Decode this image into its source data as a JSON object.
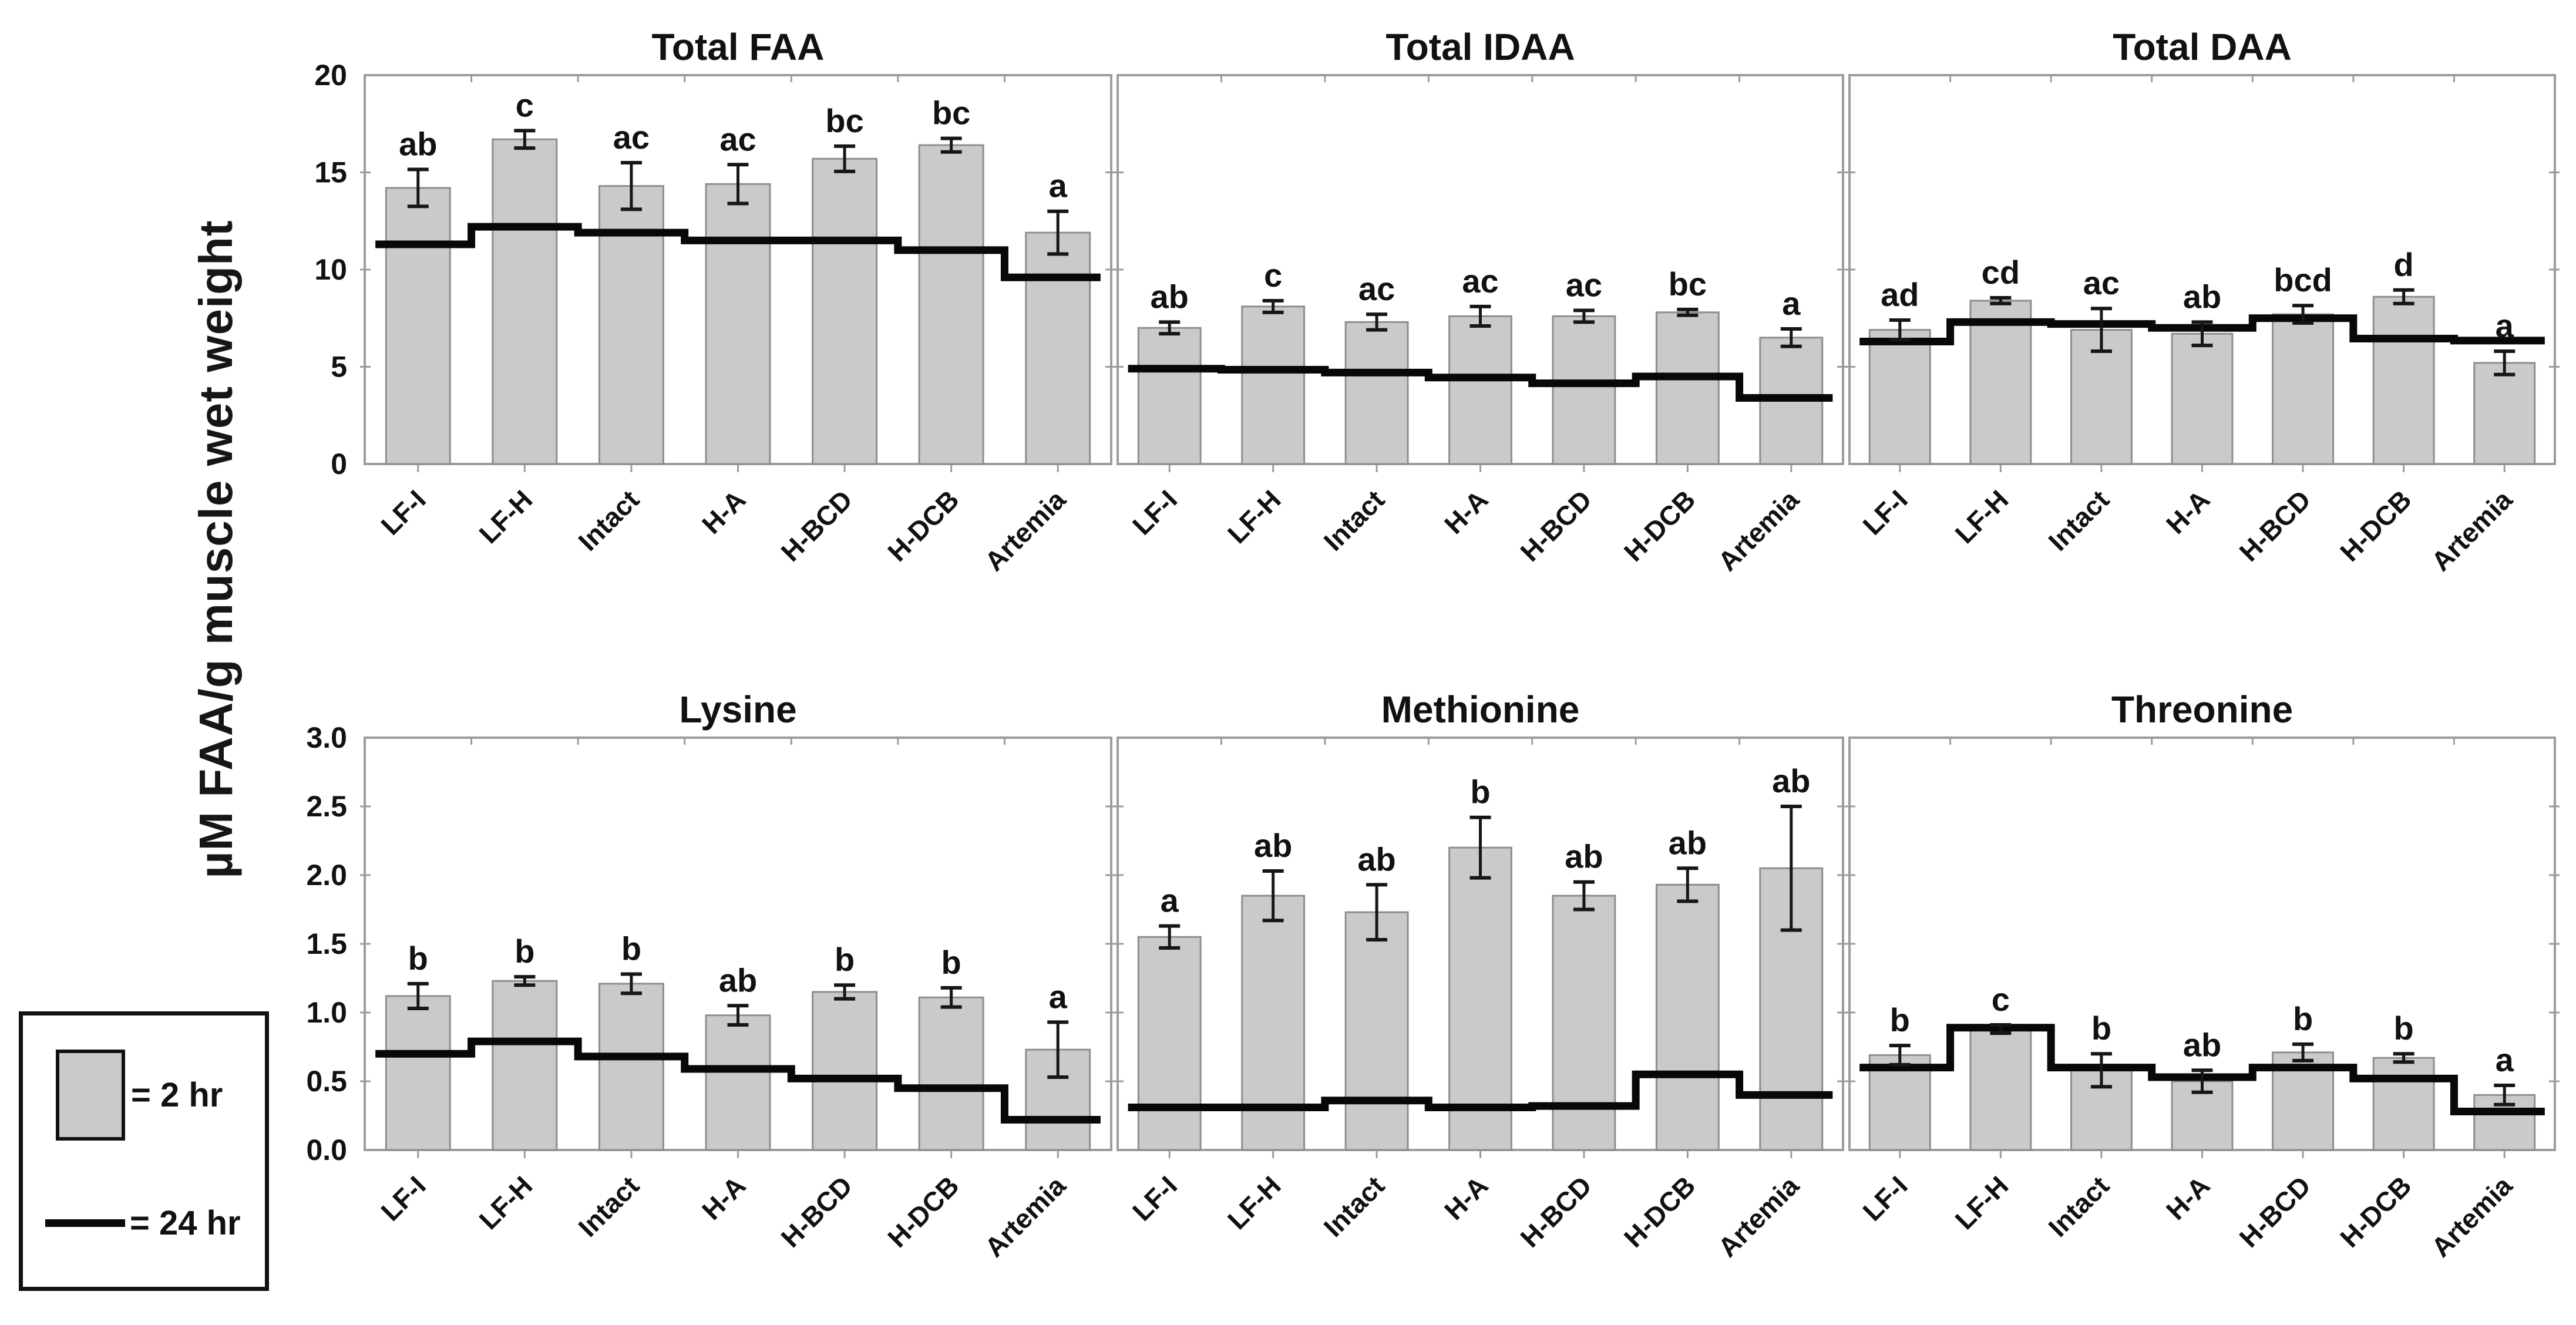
{
  "figure": {
    "y_axis_label": "µM FAA/g muscle wet weight",
    "legend": {
      "bar_label": "= 2 hr",
      "line_label": "= 24 hr"
    },
    "colors": {
      "bar_fill": "#cacaca",
      "bar_border": "#8e8e8e",
      "step_line": "#080808",
      "error_bar": "#161616",
      "panel_border": "#9c9c9c",
      "text": "#111111"
    }
  },
  "categories": [
    "LF-I",
    "LF-H",
    "Intact",
    "H-A",
    "H-BCD",
    "H-DCB",
    "Artemia"
  ],
  "chart_data": [
    {
      "type": "bar",
      "title": "Total FAA",
      "grid": {
        "row": 0,
        "col": 0
      },
      "ylim": [
        0,
        20
      ],
      "yticks": [
        0,
        5,
        10,
        15,
        20
      ],
      "ytick_labels": [
        "0",
        "5",
        "10",
        "15",
        "20"
      ],
      "show_ytick_labels": true,
      "categories": [
        "LF-I",
        "LF-H",
        "Intact",
        "H-A",
        "H-BCD",
        "H-DCB",
        "Artemia"
      ],
      "series": [
        {
          "name": "2 hr",
          "type": "bar",
          "values": [
            14.2,
            16.7,
            14.3,
            14.4,
            15.7,
            16.4,
            11.9
          ],
          "errors": [
            0.95,
            0.45,
            1.2,
            1.0,
            0.65,
            0.35,
            1.1
          ],
          "letters": [
            "ab",
            "c",
            "ac",
            "ac",
            "bc",
            "bc",
            "a"
          ]
        },
        {
          "name": "24 hr",
          "type": "step-line",
          "values": [
            11.3,
            12.2,
            11.9,
            11.5,
            11.5,
            11.0,
            9.6
          ]
        }
      ]
    },
    {
      "type": "bar",
      "title": "Total IDAA",
      "grid": {
        "row": 0,
        "col": 1
      },
      "ylim": [
        0,
        20
      ],
      "yticks": [
        0,
        5,
        10,
        15,
        20
      ],
      "ytick_labels": [
        "0",
        "5",
        "10",
        "15",
        "20"
      ],
      "show_ytick_labels": false,
      "categories": [
        "LF-I",
        "LF-H",
        "Intact",
        "H-A",
        "H-BCD",
        "H-DCB",
        "Artemia"
      ],
      "series": [
        {
          "name": "2 hr",
          "type": "bar",
          "values": [
            7.0,
            8.1,
            7.3,
            7.6,
            7.6,
            7.8,
            6.5
          ],
          "errors": [
            0.3,
            0.3,
            0.4,
            0.5,
            0.3,
            0.15,
            0.45
          ],
          "letters": [
            "ab",
            "c",
            "ac",
            "ac",
            "ac",
            "bc",
            "a"
          ]
        },
        {
          "name": "24 hr",
          "type": "step-line",
          "values": [
            4.9,
            4.85,
            4.7,
            4.45,
            4.15,
            4.5,
            3.4
          ]
        }
      ]
    },
    {
      "type": "bar",
      "title": "Total DAA",
      "grid": {
        "row": 0,
        "col": 2
      },
      "ylim": [
        0,
        20
      ],
      "yticks": [
        0,
        5,
        10,
        15,
        20
      ],
      "ytick_labels": [
        "0",
        "5",
        "10",
        "15",
        "20"
      ],
      "show_ytick_labels": false,
      "categories": [
        "LF-I",
        "LF-H",
        "Intact",
        "H-A",
        "H-BCD",
        "H-DCB",
        "Artemia"
      ],
      "series": [
        {
          "name": "2 hr",
          "type": "bar",
          "values": [
            6.9,
            8.4,
            6.9,
            6.7,
            7.7,
            8.6,
            5.2
          ],
          "errors": [
            0.5,
            0.15,
            1.1,
            0.6,
            0.45,
            0.35,
            0.6
          ],
          "letters": [
            "ad",
            "cd",
            "ac",
            "ab",
            "bcd",
            "d",
            "a"
          ]
        },
        {
          "name": "24 hr",
          "type": "step-line",
          "values": [
            6.3,
            7.3,
            7.2,
            7.0,
            7.5,
            6.45,
            6.35
          ]
        }
      ]
    },
    {
      "type": "bar",
      "title": "Lysine",
      "grid": {
        "row": 1,
        "col": 0
      },
      "ylim": [
        0,
        3.0
      ],
      "yticks": [
        0,
        0.5,
        1.0,
        1.5,
        2.0,
        2.5,
        3.0
      ],
      "ytick_labels": [
        "0.0",
        "0.5",
        "1.0",
        "1.5",
        "2.0",
        "2.5",
        "3.0"
      ],
      "show_ytick_labels": true,
      "categories": [
        "LF-I",
        "LF-H",
        "Intact",
        "H-A",
        "H-BCD",
        "H-DCB",
        "Artemia"
      ],
      "series": [
        {
          "name": "2 hr",
          "type": "bar",
          "values": [
            1.12,
            1.23,
            1.21,
            0.98,
            1.15,
            1.11,
            0.73
          ],
          "errors": [
            0.09,
            0.03,
            0.07,
            0.07,
            0.05,
            0.07,
            0.2
          ],
          "letters": [
            "b",
            "b",
            "b",
            "ab",
            "b",
            "b",
            "a"
          ]
        },
        {
          "name": "24 hr",
          "type": "step-line",
          "values": [
            0.7,
            0.79,
            0.68,
            0.59,
            0.52,
            0.45,
            0.22
          ]
        }
      ]
    },
    {
      "type": "bar",
      "title": "Methionine",
      "grid": {
        "row": 1,
        "col": 1
      },
      "ylim": [
        0,
        3.0
      ],
      "yticks": [
        0,
        0.5,
        1.0,
        1.5,
        2.0,
        2.5,
        3.0
      ],
      "ytick_labels": [
        "0.0",
        "0.5",
        "1.0",
        "1.5",
        "2.0",
        "2.5",
        "3.0"
      ],
      "show_ytick_labels": false,
      "categories": [
        "LF-I",
        "LF-H",
        "Intact",
        "H-A",
        "H-BCD",
        "H-DCB",
        "Artemia"
      ],
      "series": [
        {
          "name": "2 hr",
          "type": "bar",
          "values": [
            1.55,
            1.85,
            1.73,
            2.2,
            1.85,
            1.93,
            2.05
          ],
          "errors": [
            0.08,
            0.18,
            0.2,
            0.22,
            0.1,
            0.12,
            0.45
          ],
          "letters": [
            "a",
            "ab",
            "ab",
            "b",
            "ab",
            "ab",
            "ab"
          ]
        },
        {
          "name": "24 hr",
          "type": "step-line",
          "values": [
            0.31,
            0.31,
            0.36,
            0.31,
            0.32,
            0.55,
            0.4
          ]
        }
      ]
    },
    {
      "type": "bar",
      "title": "Threonine",
      "grid": {
        "row": 1,
        "col": 2
      },
      "ylim": [
        0,
        3.0
      ],
      "yticks": [
        0,
        0.5,
        1.0,
        1.5,
        2.0,
        2.5,
        3.0
      ],
      "ytick_labels": [
        "0.0",
        "0.5",
        "1.0",
        "1.5",
        "2.0",
        "2.5",
        "3.0"
      ],
      "show_ytick_labels": false,
      "categories": [
        "LF-I",
        "LF-H",
        "Intact",
        "H-A",
        "H-BCD",
        "H-DCB",
        "Artemia"
      ],
      "series": [
        {
          "name": "2 hr",
          "type": "bar",
          "values": [
            0.69,
            0.88,
            0.58,
            0.5,
            0.71,
            0.67,
            0.4
          ],
          "errors": [
            0.07,
            0.03,
            0.12,
            0.08,
            0.06,
            0.03,
            0.07
          ],
          "letters": [
            "b",
            "c",
            "b",
            "ab",
            "b",
            "b",
            "a"
          ]
        },
        {
          "name": "24 hr",
          "type": "step-line",
          "values": [
            0.6,
            0.89,
            0.6,
            0.53,
            0.6,
            0.52,
            0.28
          ]
        }
      ]
    }
  ]
}
